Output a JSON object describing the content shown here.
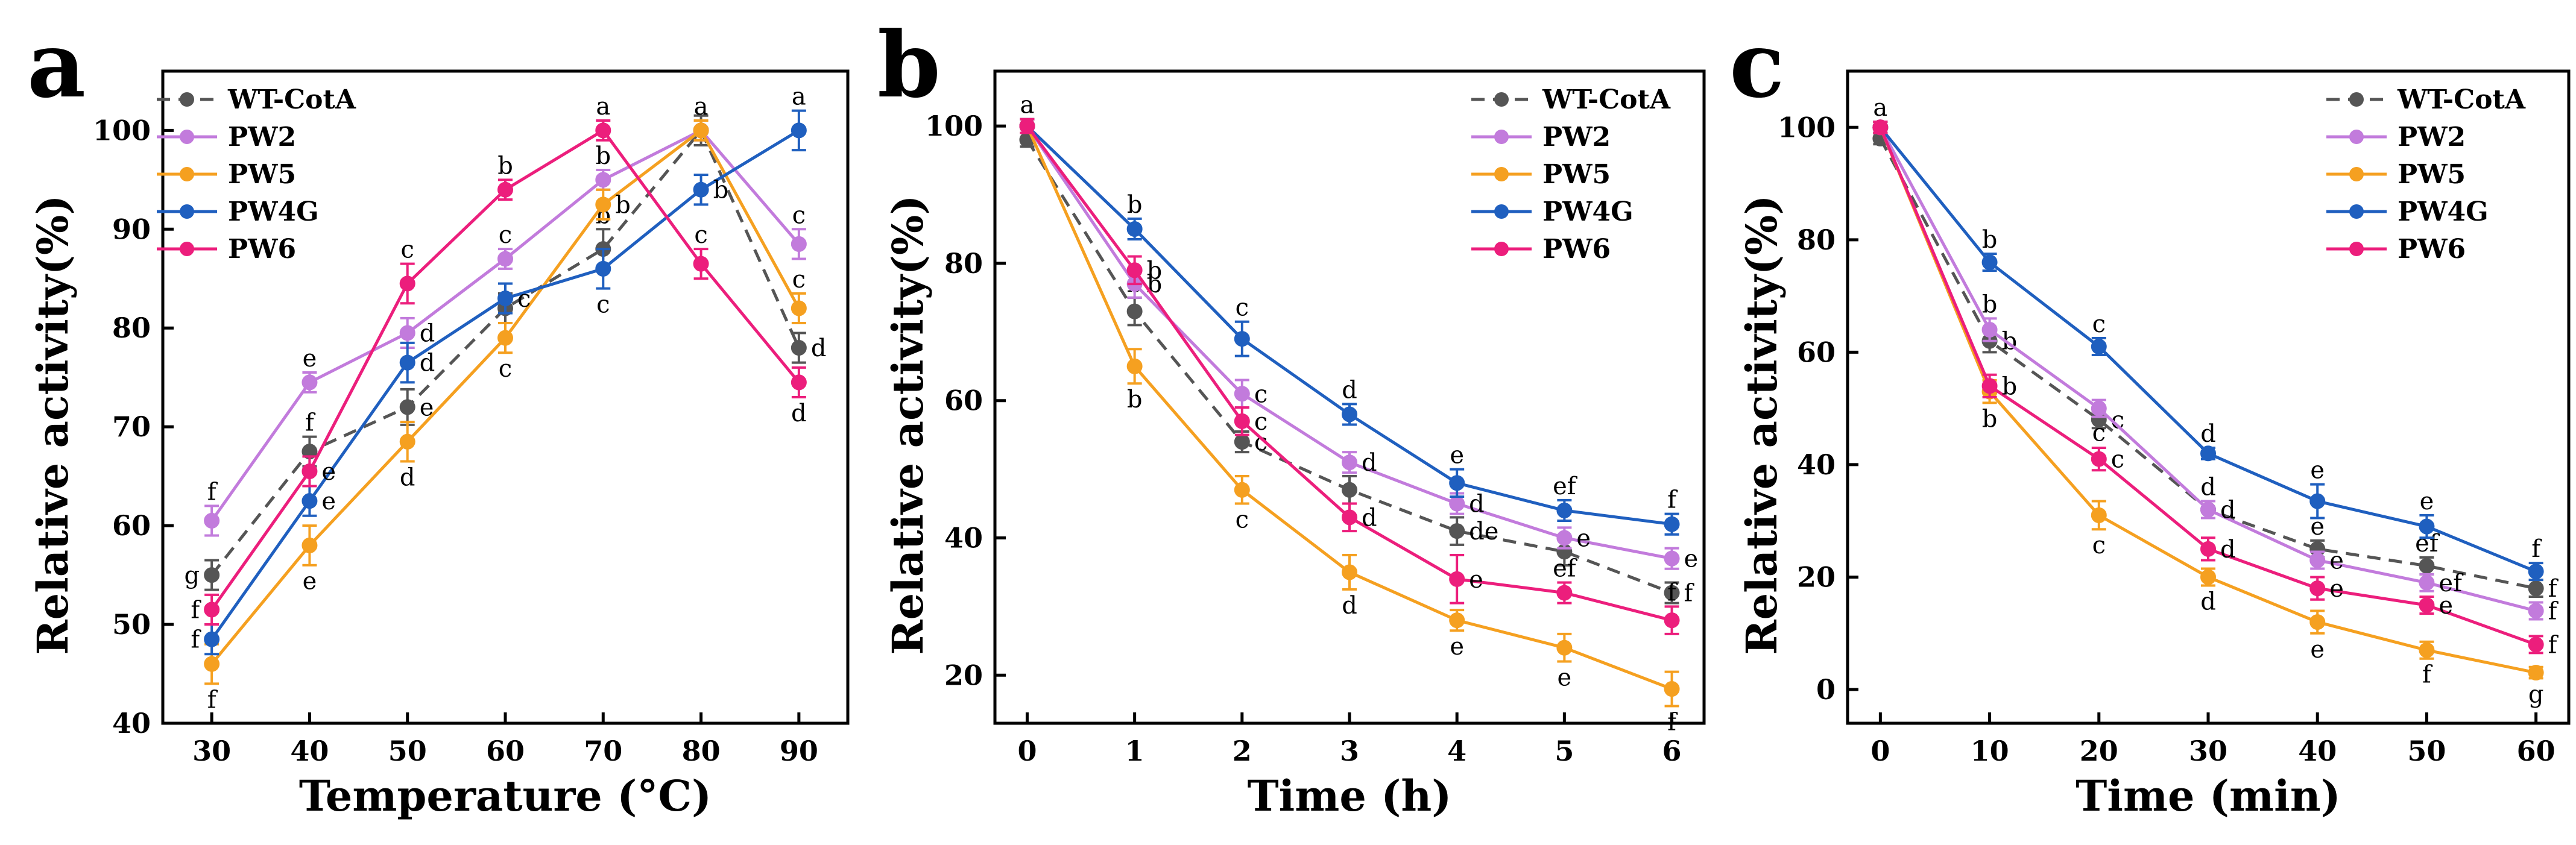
{
  "figure": {
    "colors": {
      "WT-CotA": "#555555",
      "PW2": "#c27bdc",
      "PW5": "#f5a020",
      "PW4G": "#1f5fbf",
      "PW6": "#ec1e7c"
    }
  },
  "chart_data": [
    {
      "panel": "a",
      "type": "line",
      "xlabel": "Temperature (°C)",
      "ylabel": "Relative activity(%)",
      "xlim": [
        25,
        95
      ],
      "ylim": [
        40,
        106
      ],
      "x_ticks": [
        30,
        40,
        50,
        60,
        70,
        80,
        90
      ],
      "y_ticks": [
        40,
        50,
        60,
        70,
        80,
        90,
        100
      ],
      "legend_position": "top-left",
      "x": [
        30,
        40,
        50,
        60,
        70,
        80,
        90
      ],
      "series": [
        {
          "name": "WT-CotA",
          "style": "dashed",
          "values": [
            55,
            67.5,
            72,
            82,
            88,
            100,
            78
          ],
          "errors": [
            1.5,
            1.5,
            1.8,
            1.5,
            2,
            1.5,
            1.5
          ],
          "letters": [
            "g",
            "f",
            "e",
            "",
            "b",
            "",
            "d"
          ],
          "letter_pos": [
            "left",
            "above",
            "right",
            "",
            "above",
            "",
            "right"
          ]
        },
        {
          "name": "PW2",
          "style": "solid",
          "values": [
            60.5,
            74.5,
            79.5,
            87,
            95,
            100,
            88.5
          ],
          "errors": [
            1.5,
            1,
            1.5,
            1,
            1,
            1,
            1.5
          ],
          "letters": [
            "f",
            "e",
            "d",
            "c",
            "b",
            "a",
            "c"
          ],
          "letter_pos": [
            "above",
            "above",
            "right",
            "above",
            "above",
            "above",
            "above"
          ]
        },
        {
          "name": "PW5",
          "style": "solid",
          "values": [
            46,
            58,
            68.5,
            79,
            92.5,
            100,
            82
          ],
          "errors": [
            2,
            2,
            2,
            1.5,
            1.5,
            1,
            1.5
          ],
          "letters": [
            "f",
            "e",
            "d",
            "c",
            "b",
            "",
            "c"
          ],
          "letter_pos": [
            "below",
            "below",
            "below",
            "below",
            "right",
            "",
            "above"
          ]
        },
        {
          "name": "PW4G",
          "style": "solid",
          "values": [
            48.5,
            62.5,
            76.5,
            83,
            86,
            94,
            100
          ],
          "errors": [
            1.5,
            1.5,
            2,
            1.5,
            2,
            1.5,
            2
          ],
          "letters": [
            "f",
            "e",
            "d",
            "c",
            "c",
            "b",
            "a"
          ],
          "letter_pos": [
            "left",
            "right",
            "right",
            "right",
            "below",
            "right",
            "above"
          ]
        },
        {
          "name": "PW6",
          "style": "solid",
          "values": [
            51.5,
            65.5,
            84.5,
            94,
            100,
            86.5,
            74.5
          ],
          "errors": [
            1.5,
            1.5,
            2,
            1,
            1,
            1.5,
            1.5
          ],
          "letters": [
            "f",
            "e",
            "c",
            "b",
            "a",
            "c",
            "d"
          ],
          "letter_pos": [
            "left",
            "right",
            "above",
            "above",
            "above",
            "above",
            "below"
          ]
        }
      ]
    },
    {
      "panel": "b",
      "type": "line",
      "xlabel": "Time (h)",
      "ylabel": "Relative activity(%)",
      "xlim": [
        -0.3,
        6.3
      ],
      "ylim": [
        13,
        108
      ],
      "x_ticks": [
        0,
        1,
        2,
        3,
        4,
        5,
        6
      ],
      "y_ticks": [
        20,
        40,
        60,
        80,
        100
      ],
      "legend_position": "top-right",
      "x": [
        0,
        1,
        2,
        3,
        4,
        5,
        6
      ],
      "series": [
        {
          "name": "WT-CotA",
          "style": "dashed",
          "values": [
            98,
            73,
            54,
            47,
            41,
            38,
            32
          ],
          "errors": [
            1,
            2,
            1.5,
            2,
            2,
            2,
            1.5
          ],
          "letters": [
            "",
            "b",
            "c",
            "",
            "de",
            "",
            "f"
          ],
          "letter_pos": [
            "",
            "above",
            "right",
            "",
            "right",
            "",
            "right"
          ]
        },
        {
          "name": "PW2",
          "style": "solid",
          "values": [
            100,
            77,
            61,
            51,
            45,
            40,
            37
          ],
          "errors": [
            1,
            2,
            2,
            1.5,
            1.5,
            1.5,
            1.5
          ],
          "letters": [
            "a",
            "b",
            "c",
            "d",
            "d",
            "e",
            "e"
          ],
          "letter_pos": [
            "above",
            "right",
            "right",
            "right",
            "right",
            "right",
            "right"
          ]
        },
        {
          "name": "PW5",
          "style": "solid",
          "values": [
            100,
            65,
            47,
            35,
            28,
            24,
            18
          ],
          "errors": [
            1,
            2.5,
            2,
            2.5,
            1.5,
            2,
            2.5
          ],
          "letters": [
            "",
            "b",
            "c",
            "d",
            "e",
            "e",
            "f"
          ],
          "letter_pos": [
            "",
            "below",
            "below",
            "below",
            "below",
            "below",
            "below"
          ]
        },
        {
          "name": "PW4G",
          "style": "solid",
          "values": [
            100,
            85,
            69,
            58,
            48,
            44,
            42
          ],
          "errors": [
            1,
            1.5,
            2.5,
            1.5,
            2,
            1.5,
            1.5
          ],
          "letters": [
            "",
            "b",
            "c",
            "d",
            "e",
            "ef",
            "f"
          ],
          "letter_pos": [
            "",
            "above",
            "above",
            "above",
            "above",
            "above",
            "above"
          ]
        },
        {
          "name": "PW6",
          "style": "solid",
          "values": [
            100,
            79,
            57,
            43,
            34,
            32,
            28
          ],
          "errors": [
            1,
            2,
            2,
            2,
            3.5,
            1.5,
            2
          ],
          "letters": [
            "",
            "b",
            "c",
            "d",
            "e",
            "ef",
            "f"
          ],
          "letter_pos": [
            "",
            "right",
            "right",
            "right",
            "right",
            "above",
            "above"
          ]
        }
      ]
    },
    {
      "panel": "c",
      "type": "line",
      "xlabel": "Time (min)",
      "ylabel": "Relative activity(%)",
      "xlim": [
        -3,
        63
      ],
      "ylim": [
        -6,
        110
      ],
      "x_ticks": [
        0,
        10,
        20,
        30,
        40,
        50,
        60
      ],
      "y_ticks": [
        0,
        20,
        40,
        60,
        80,
        100
      ],
      "legend_position": "top-right",
      "x": [
        0,
        10,
        20,
        30,
        40,
        50,
        60
      ],
      "series": [
        {
          "name": "WT-CotA",
          "style": "dashed",
          "values": [
            98,
            62,
            48,
            32,
            25,
            22,
            18
          ],
          "errors": [
            1,
            2,
            1.5,
            1.5,
            1.5,
            1.5,
            1.5
          ],
          "letters": [
            "",
            "b",
            "c",
            "d",
            "e",
            "ef",
            "f"
          ],
          "letter_pos": [
            "",
            "right",
            "right",
            "above",
            "above",
            "above",
            "right"
          ]
        },
        {
          "name": "PW2",
          "style": "solid",
          "values": [
            100,
            64,
            50,
            32,
            23,
            19,
            14
          ],
          "errors": [
            1,
            2,
            1.5,
            1.5,
            1.5,
            1.5,
            1.5
          ],
          "letters": [
            "",
            "b",
            "c",
            "d",
            "e",
            "ef",
            "f"
          ],
          "letter_pos": [
            "",
            "above",
            "below",
            "right",
            "right",
            "right",
            "right"
          ]
        },
        {
          "name": "PW5",
          "style": "solid",
          "values": [
            100,
            53,
            31,
            20,
            12,
            7,
            3
          ],
          "errors": [
            1,
            2,
            2.5,
            1.5,
            2,
            1.5,
            1
          ],
          "letters": [
            "",
            "b",
            "c",
            "d",
            "e",
            "f",
            "g"
          ],
          "letter_pos": [
            "",
            "below",
            "below",
            "below",
            "below",
            "below",
            "below"
          ]
        },
        {
          "name": "PW4G",
          "style": "solid",
          "values": [
            100,
            76,
            61,
            42,
            33.5,
            29,
            21
          ],
          "errors": [
            1,
            1.5,
            1.5,
            1,
            3,
            2,
            1.5
          ],
          "letters": [
            "a",
            "b",
            "c",
            "d",
            "e",
            "e",
            "f"
          ],
          "letter_pos": [
            "above",
            "above",
            "above",
            "above",
            "above",
            "above",
            "above"
          ]
        },
        {
          "name": "PW6",
          "style": "solid",
          "values": [
            100,
            54,
            41,
            25,
            18,
            15,
            8
          ],
          "errors": [
            1,
            2,
            2,
            2,
            2,
            1.5,
            1.5
          ],
          "letters": [
            "",
            "b",
            "c",
            "d",
            "e",
            "e",
            "f"
          ],
          "letter_pos": [
            "",
            "right",
            "right",
            "right",
            "right",
            "right",
            "right"
          ]
        }
      ]
    }
  ]
}
